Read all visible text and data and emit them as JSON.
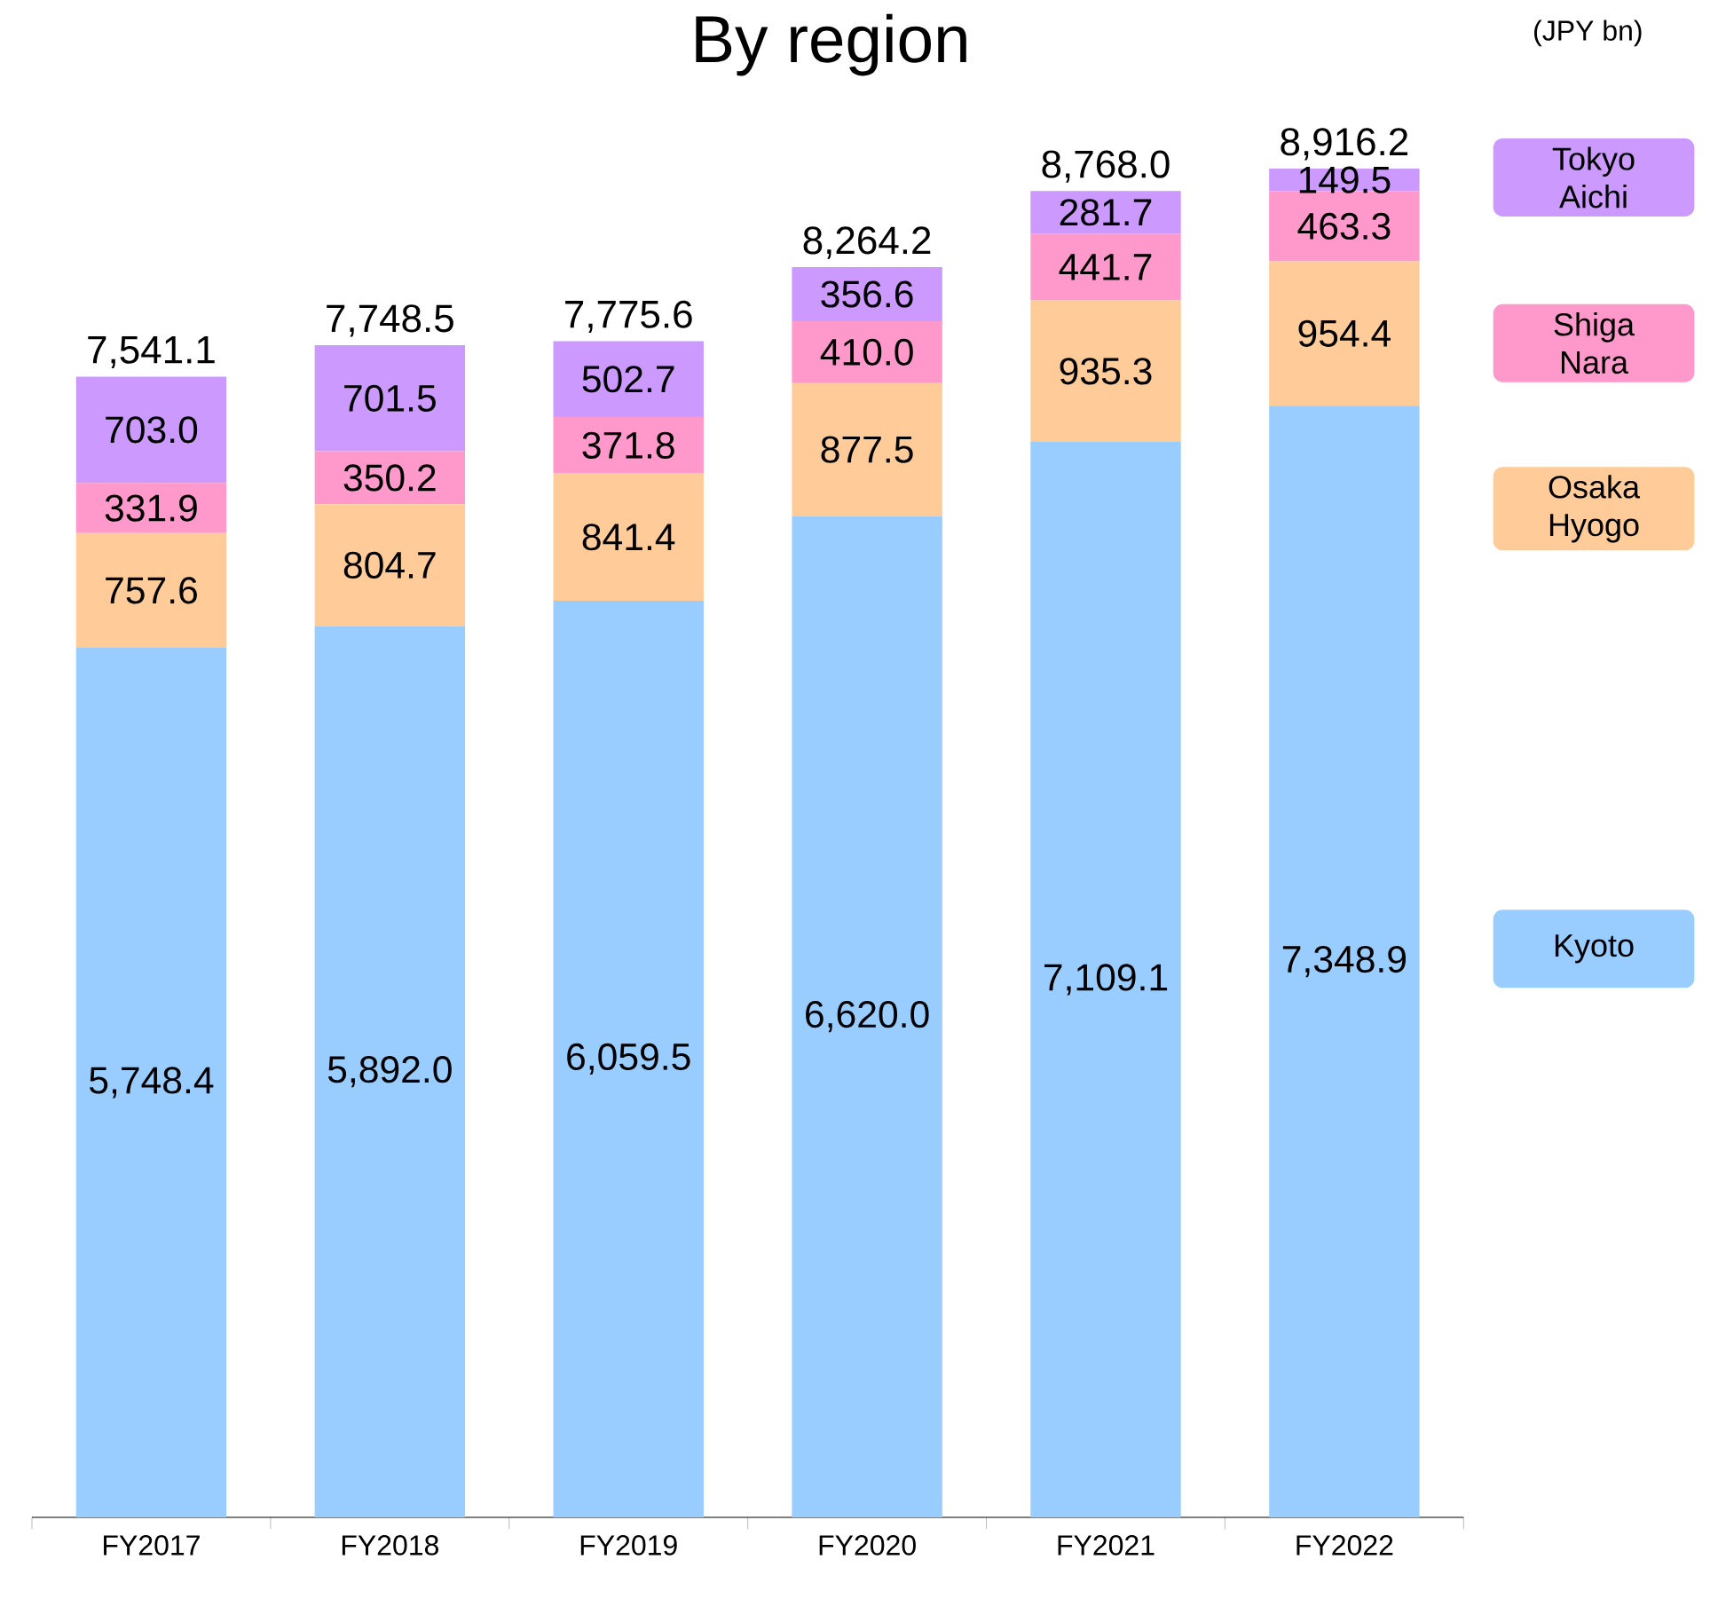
{
  "chart_data": {
    "type": "bar",
    "stacked": true,
    "title": "By region",
    "categories": [
      "FY2017",
      "FY2018",
      "FY2019",
      "FY2020",
      "FY2021",
      "FY2022"
    ],
    "series": [
      {
        "name": "Kyoto",
        "color": "#99ccff",
        "values": [
          5748.4,
          5892.0,
          6059.5,
          6620.0,
          7109.1,
          7348.9
        ],
        "value_labels": [
          "5,748.4",
          "5,892.0",
          "6,059.5",
          "6,620.0",
          "7,109.1",
          "7,348.9"
        ]
      },
      {
        "name": "Osaka Hyogo",
        "color": "#ffcc99",
        "values": [
          757.6,
          804.7,
          841.4,
          877.5,
          935.3,
          954.4
        ],
        "value_labels": [
          "757.6",
          "804.7",
          "841.4",
          "877.5",
          "935.3",
          "954.4"
        ]
      },
      {
        "name": "Shiga Nara",
        "color": "#ff99cc",
        "values": [
          331.9,
          350.2,
          371.8,
          410.0,
          441.7,
          463.3
        ],
        "value_labels": [
          "331.9",
          "350.2",
          "371.8",
          "410.0",
          "441.7",
          "463.3"
        ]
      },
      {
        "name": "Tokyo Aichi",
        "color": "#cc99ff",
        "values": [
          703.0,
          701.5,
          502.7,
          356.6,
          281.7,
          149.5
        ],
        "value_labels": [
          "703.0",
          "701.5",
          "502.7",
          "356.6",
          "281.7",
          "149.5"
        ]
      }
    ],
    "totals": [
      "7,541.1",
      "7,748.5",
      "7,775.6",
      "8,264.2",
      "8,768.0",
      "8,916.2"
    ],
    "legend": "right",
    "annotations": [
      "(JPY bn)"
    ]
  }
}
